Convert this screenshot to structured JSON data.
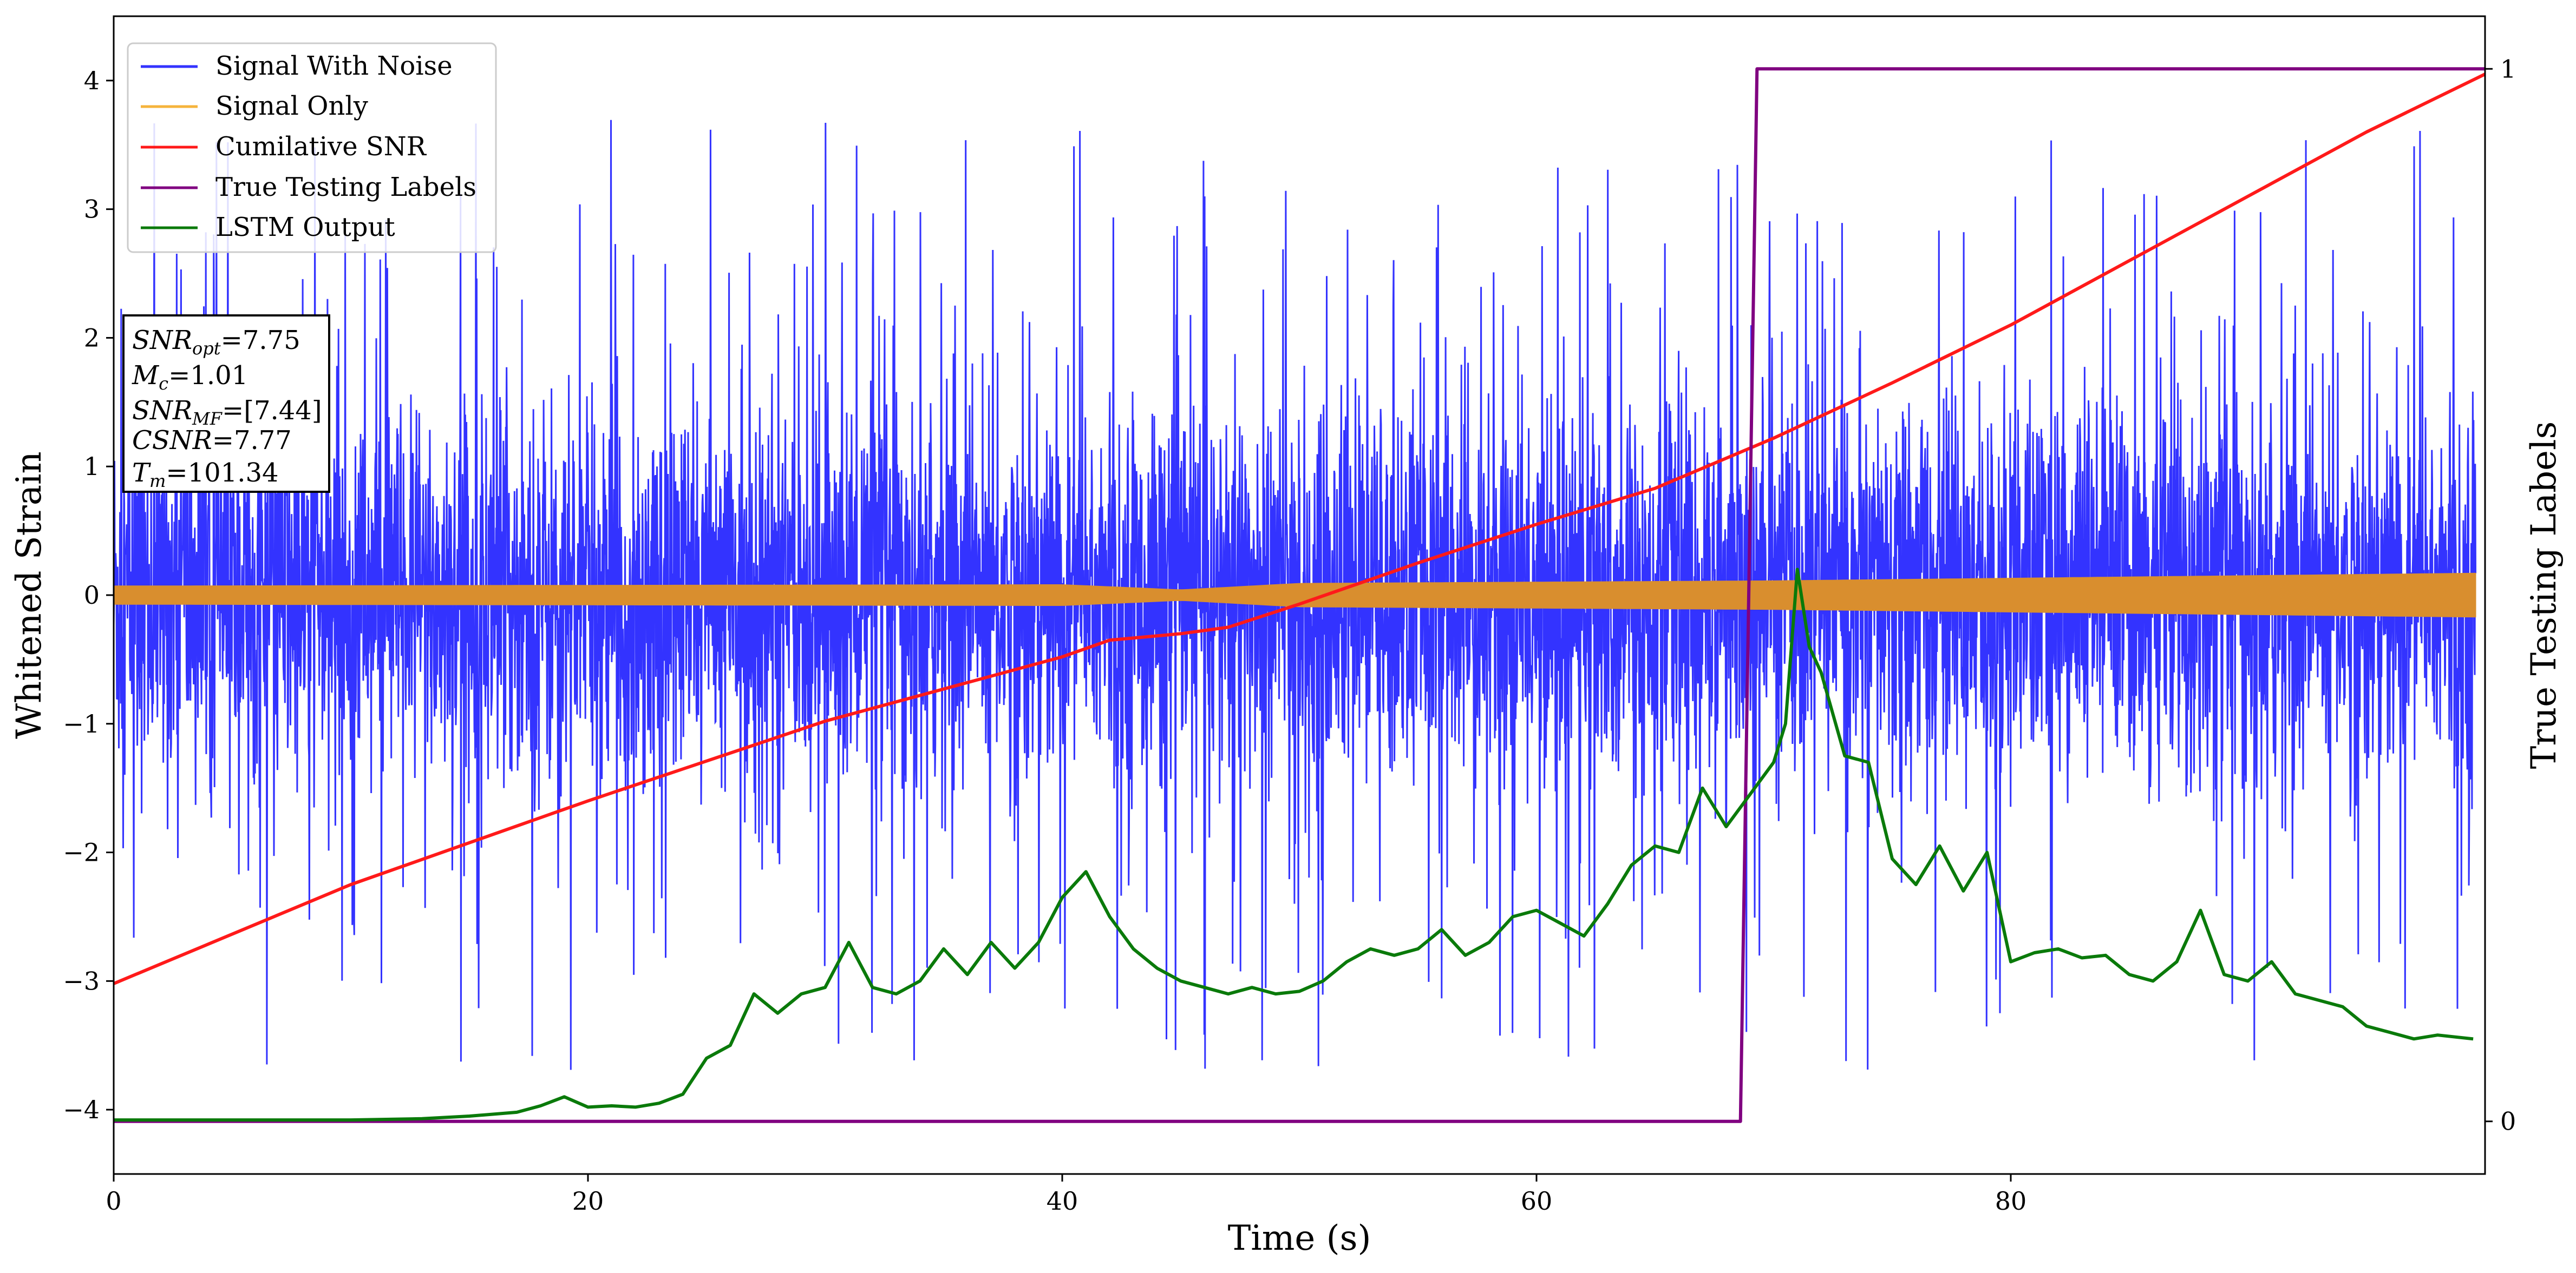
{
  "chart_data": {
    "type": "line",
    "xlabel": "Time (s)",
    "ylabel": "Whitened Strain",
    "y2label": "True Testing Labels",
    "xlim": [
      0,
      100
    ],
    "ylim": [
      -4.5,
      4.5
    ],
    "y2lim": [
      -0.05,
      1.05
    ],
    "xticks": [
      "0",
      "20",
      "40",
      "60",
      "80"
    ],
    "xtick_values": [
      0,
      20,
      40,
      60,
      80
    ],
    "yticks": [
      "−4",
      "−3",
      "−2",
      "−1",
      "0",
      "1",
      "2",
      "3",
      "4"
    ],
    "ytick_values": [
      -4,
      -3,
      -2,
      -1,
      0,
      1,
      2,
      3,
      4
    ],
    "y2ticks": [
      "0",
      "1"
    ],
    "y2tick_values": [
      0,
      1
    ],
    "legend_position": "top-left",
    "grid": false,
    "colors": {
      "signal_with_noise": "#3333ff",
      "signal_only": "#d98e2e",
      "signal_only_legend": "#f5b43c",
      "cumulative_snr": "#ff1a1a",
      "true_labels": "#800080",
      "lstm_output": "#0a7a0a"
    },
    "legend": [
      "Signal With Noise",
      "Signal Only",
      "Cumilative SNR",
      "True Testing Labels",
      "LSTM Output"
    ],
    "info_box": {
      "snr_opt": {
        "base": "SNR",
        "sub": "opt",
        "value": "=7.75"
      },
      "mc": {
        "base": "M",
        "sub": "c",
        "value": "=1.01"
      },
      "snr_mf": {
        "base": "SNR",
        "sub": "MF",
        "value": "=[7.44]"
      },
      "csnr": {
        "base": "CSNR",
        "value": "=7.77"
      },
      "tm": {
        "base": "T",
        "sub": "m",
        "value": "=101.34"
      }
    },
    "series": [
      {
        "name": "Signal With Noise",
        "description_values": "noise band approximately ±1.5 with spikes to about ±4",
        "envelope_typical": 1.5,
        "spike_max": 4.1,
        "spike_min": -3.9
      },
      {
        "name": "Signal Only",
        "amplitude": [
          [
            0,
            0.07
          ],
          [
            40,
            0.08
          ],
          [
            45,
            0.04
          ],
          [
            50,
            0.09
          ],
          [
            70,
            0.11
          ],
          [
            100,
            0.17
          ]
        ]
      },
      {
        "name": "Cumilative SNR",
        "axis": "left",
        "x": [
          0,
          10,
          20,
          30,
          40,
          42,
          45,
          47,
          50,
          55,
          60,
          65,
          70,
          75,
          80,
          85,
          90,
          95,
          100
        ],
        "y": [
          -3.02,
          -2.25,
          -1.6,
          -0.98,
          -0.48,
          -0.35,
          -0.3,
          -0.25,
          -0.07,
          0.25,
          0.55,
          0.83,
          1.22,
          1.65,
          2.1,
          2.6,
          3.1,
          3.6,
          4.05
        ]
      },
      {
        "name": "True Testing Labels",
        "axis": "right",
        "x": [
          0,
          68.6,
          69.3,
          100
        ],
        "y": [
          0,
          0,
          1,
          1
        ]
      },
      {
        "name": "LSTM Output",
        "axis": "left",
        "x": [
          0,
          10,
          13,
          15,
          17,
          18,
          19,
          20,
          21,
          22,
          23,
          24,
          25,
          26,
          27,
          28,
          29,
          30,
          31,
          32,
          33,
          34,
          35,
          36,
          37,
          38,
          39,
          40,
          41,
          42,
          43,
          44,
          45,
          46,
          47,
          48,
          49,
          50,
          51,
          52,
          53,
          54,
          55,
          56,
          57,
          58,
          59,
          60,
          61,
          62,
          63,
          64,
          65,
          66,
          67,
          68,
          69,
          70,
          70.5,
          71,
          71.5,
          72,
          73,
          74,
          75,
          76,
          77,
          78,
          79,
          80,
          81,
          82,
          83,
          84,
          85,
          86,
          87,
          88,
          89,
          90,
          91,
          92,
          93,
          94,
          95,
          96,
          97,
          98,
          99.5
        ],
        "y": [
          -4.08,
          -4.08,
          -4.07,
          -4.05,
          -4.02,
          -3.97,
          -3.9,
          -3.98,
          -3.97,
          -3.98,
          -3.95,
          -3.88,
          -3.6,
          -3.5,
          -3.1,
          -3.25,
          -3.1,
          -3.05,
          -2.7,
          -3.05,
          -3.1,
          -3.0,
          -2.75,
          -2.95,
          -2.7,
          -2.9,
          -2.7,
          -2.35,
          -2.15,
          -2.5,
          -2.75,
          -2.9,
          -3.0,
          -3.05,
          -3.1,
          -3.05,
          -3.1,
          -3.08,
          -3.0,
          -2.85,
          -2.75,
          -2.8,
          -2.75,
          -2.6,
          -2.8,
          -2.7,
          -2.5,
          -2.45,
          -2.55,
          -2.65,
          -2.4,
          -2.1,
          -1.95,
          -2.0,
          -1.5,
          -1.8,
          -1.55,
          -1.3,
          -1.0,
          0.2,
          -0.4,
          -0.6,
          -1.25,
          -1.3,
          -2.05,
          -2.25,
          -1.95,
          -2.3,
          -2.0,
          -2.85,
          -2.78,
          -2.75,
          -2.82,
          -2.8,
          -2.95,
          -3.0,
          -2.85,
          -2.45,
          -2.95,
          -3.0,
          -2.85,
          -3.1,
          -3.15,
          -3.2,
          -3.35,
          -3.4,
          -3.45,
          -3.42,
          -3.45
        ]
      }
    ]
  }
}
